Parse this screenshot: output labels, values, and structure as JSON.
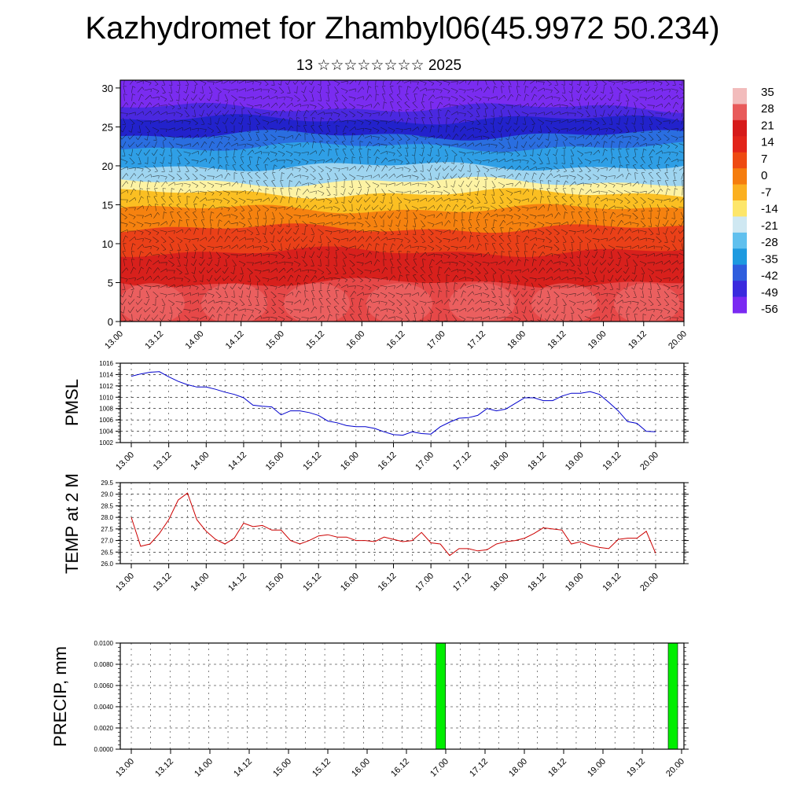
{
  "title": "Kazhydromet for Zhambyl06(45.9972 50.234)",
  "subtitle": "13 ☆☆☆☆☆☆☆☆ 2025",
  "time_ticks": [
    "13.00",
    "13.12",
    "14.00",
    "14.12",
    "15.00",
    "15.12",
    "16.00",
    "16.12",
    "17.00",
    "17.12",
    "18.00",
    "18.12",
    "19.00",
    "19.12",
    "20.00"
  ],
  "chart_data": [
    {
      "type": "heatmap",
      "name": "cross-section",
      "ylim": [
        0,
        31
      ],
      "yticks": [
        "0",
        "5",
        "10",
        "15",
        "20",
        "25",
        "30"
      ],
      "colorbar_labels": [
        "35",
        "28",
        "21",
        "14",
        "7",
        "0",
        "-7",
        "-14",
        "-21",
        "-28",
        "-35",
        "-42",
        "-49",
        "-56"
      ],
      "colorbar_colors": [
        "#f2bcbc",
        "#e85a5a",
        "#d61a1a",
        "#e2241a",
        "#ee4a12",
        "#f57d0e",
        "#fbb020",
        "#fde66a",
        "#cfe8f2",
        "#60c0ee",
        "#1e9ae0",
        "#2f5ede",
        "#3a2ade",
        "#7a2af2"
      ],
      "layer_colors": [
        {
          "from": 0,
          "to": 5,
          "color": "#e64848"
        },
        {
          "from": 5,
          "to": 9,
          "color": "#d8201c"
        },
        {
          "from": 9,
          "to": 12,
          "color": "#ea4018"
        },
        {
          "from": 12,
          "to": 14.5,
          "color": "#f6820f"
        },
        {
          "from": 14.5,
          "to": 16.5,
          "color": "#fbbf22"
        },
        {
          "from": 16.5,
          "to": 18,
          "color": "#fdf3a4"
        },
        {
          "from": 18,
          "to": 20,
          "color": "#9fd5f0"
        },
        {
          "from": 20,
          "to": 22.5,
          "color": "#2f9fe6"
        },
        {
          "from": 22.5,
          "to": 24,
          "color": "#2a6ee0"
        },
        {
          "from": 24,
          "to": 26,
          "color": "#2222cc"
        },
        {
          "from": 26,
          "to": 27.5,
          "color": "#4a28e0"
        },
        {
          "from": 27.5,
          "to": 31,
          "color": "#7a2cf0"
        }
      ]
    },
    {
      "type": "line",
      "name": "PMSL",
      "ylabel": "PMSL",
      "ylim": [
        1002,
        1016
      ],
      "yticks": [
        "1016",
        "1014",
        "1012",
        "1010",
        "1008",
        "1006",
        "1004",
        "1002"
      ],
      "color": "#0000cc",
      "x": [
        0,
        1,
        2,
        3,
        4,
        5,
        6,
        7,
        8,
        9,
        10,
        11,
        12,
        13,
        14,
        15,
        16,
        17,
        18,
        19,
        20,
        21,
        22,
        23,
        24,
        25,
        26,
        27,
        28,
        29,
        30,
        31,
        32,
        33,
        34,
        35,
        36,
        37,
        38,
        39,
        40,
        41,
        42,
        43,
        44,
        45,
        46,
        47,
        48,
        49,
        50,
        51,
        52,
        53,
        54,
        55,
        56
      ],
      "values": [
        1013.7,
        1014.1,
        1014.4,
        1014.5,
        1013.6,
        1012.8,
        1012.2,
        1011.8,
        1011.8,
        1011.4,
        1010.9,
        1010.5,
        1009.9,
        1008.6,
        1008.4,
        1008.3,
        1006.9,
        1007.6,
        1007.6,
        1007.3,
        1006.8,
        1005.8,
        1005.5,
        1005.0,
        1004.8,
        1004.8,
        1004.5,
        1003.9,
        1003.4,
        1003.3,
        1003.9,
        1003.6,
        1003.5,
        1004.8,
        1005.6,
        1006.3,
        1006.4,
        1006.8,
        1008.0,
        1007.6,
        1007.9,
        1008.9,
        1009.9,
        1009.9,
        1009.4,
        1009.4,
        1010.2,
        1010.7,
        1010.7,
        1011.0,
        1010.5,
        1009.1,
        1007.6,
        1005.7,
        1005.4,
        1004.0,
        1003.9
      ]
    },
    {
      "type": "line",
      "name": "TEMP",
      "ylabel": "TEMP at 2 M",
      "ylim": [
        26.0,
        29.5
      ],
      "yticks": [
        "29.5",
        "29.0",
        "28.5",
        "28.0",
        "27.5",
        "27.0",
        "26.5",
        "26.0"
      ],
      "color": "#cc0000",
      "x": [
        0,
        1,
        2,
        3,
        4,
        5,
        6,
        7,
        8,
        9,
        10,
        11,
        12,
        13,
        14,
        15,
        16,
        17,
        18,
        19,
        20,
        21,
        22,
        23,
        24,
        25,
        26,
        27,
        28,
        29,
        30,
        31,
        32,
        33,
        34,
        35,
        36,
        37,
        38,
        39,
        40,
        41,
        42,
        43,
        44,
        45,
        46,
        47,
        48,
        49,
        50,
        51,
        52,
        53,
        54,
        55,
        56
      ],
      "values": [
        28.0,
        26.75,
        26.85,
        27.3,
        27.9,
        28.75,
        29.05,
        27.9,
        27.4,
        27.05,
        26.85,
        27.1,
        27.75,
        27.6,
        27.65,
        27.45,
        27.45,
        27.0,
        26.85,
        27.0,
        27.2,
        27.25,
        27.15,
        27.15,
        27.0,
        27.0,
        26.95,
        27.15,
        27.05,
        26.95,
        27.0,
        27.35,
        26.9,
        26.85,
        26.35,
        26.65,
        26.65,
        26.55,
        26.6,
        26.85,
        26.95,
        27.0,
        27.1,
        27.3,
        27.55,
        27.5,
        27.45,
        26.85,
        26.95,
        26.8,
        26.7,
        26.65,
        27.05,
        27.1,
        27.1,
        27.4,
        26.45
      ]
    },
    {
      "type": "bar",
      "name": "PRECIP",
      "ylabel": "PRECIP, mm",
      "ylim": [
        0,
        0.01
      ],
      "yticks": [
        "0.0100",
        "0.0080",
        "0.0060",
        "0.0040",
        "0.0020",
        "0.0000"
      ],
      "color": "#00ee00",
      "bars": [
        {
          "x": 48,
          "value": 0.01
        },
        {
          "x": 84,
          "value": 0.01
        }
      ]
    }
  ]
}
